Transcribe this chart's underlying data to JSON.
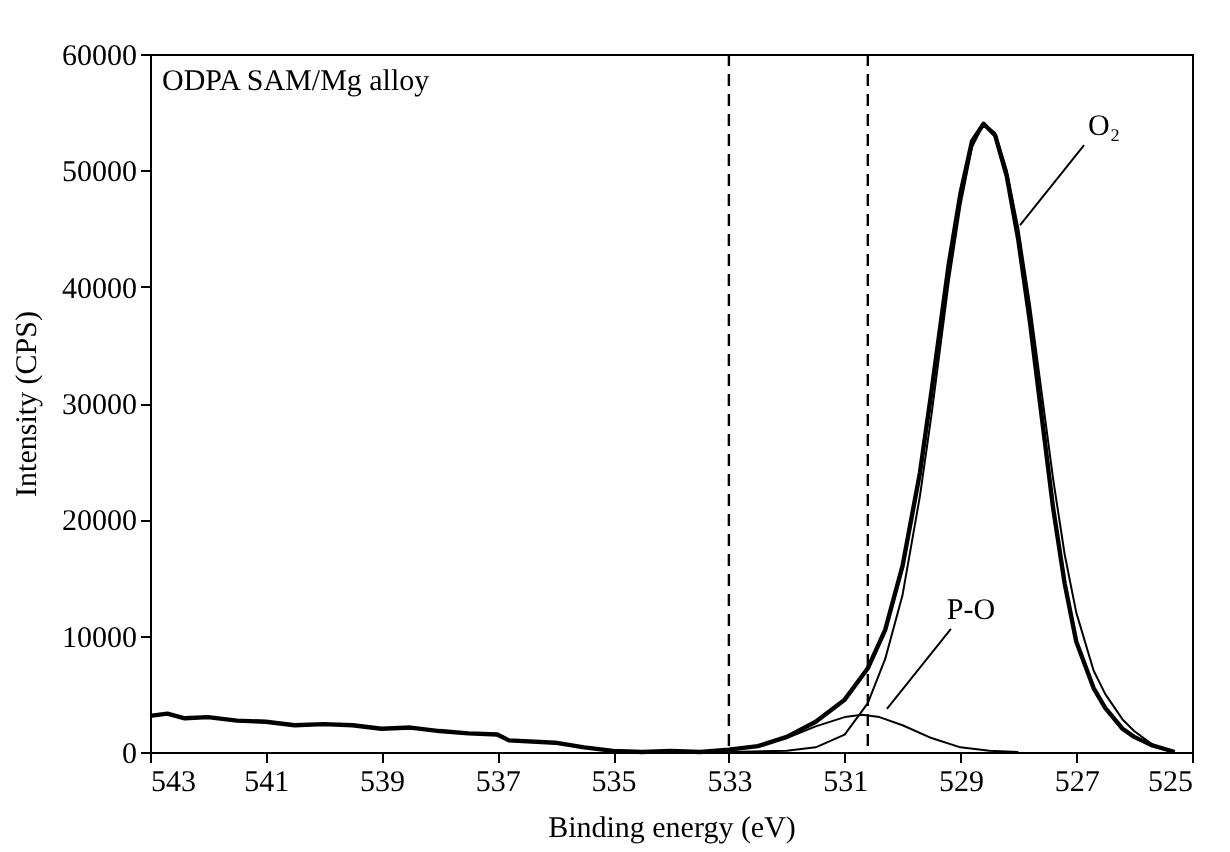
{
  "chart_data": {
    "type": "line",
    "xlabel": "Binding energy (eV)",
    "ylabel": "Intensity (CPS)",
    "xlim": [
      543,
      525
    ],
    "xticks": [
      543,
      541,
      539,
      537,
      535,
      533,
      531,
      529,
      527,
      525
    ],
    "ylim": [
      0,
      60000
    ],
    "yticks": [
      0,
      10000,
      20000,
      30000,
      40000,
      50000,
      60000
    ],
    "grid": false,
    "marker": "none",
    "line_style": "solid",
    "annotations": [
      "ODPA SAM/Mg alloy",
      {
        "text": "O₂",
        "x": 527.97,
        "y": 45300
      },
      {
        "text": "P-O",
        "x": 530.27,
        "y": 3700
      }
    ],
    "ref_lines": [
      {
        "axis": "x",
        "value": 533,
        "line_style": "dashed",
        "color": "#000000"
      },
      {
        "axis": "x",
        "value": 530.6,
        "line_style": "dashed",
        "color": "#000000"
      }
    ],
    "series": [
      {
        "color": "#000000",
        "x": [
          543,
          542.7,
          542.4,
          542,
          541.5,
          541,
          540.5,
          540,
          539.5,
          539,
          538.5,
          538,
          537.5,
          537,
          536.8,
          536,
          535.5,
          535,
          534.5,
          534,
          533.5,
          533,
          532.5,
          532,
          531.5,
          531,
          530.6,
          530.3,
          530,
          529.7,
          529.5,
          529.2,
          529,
          528.8,
          528.6,
          528.4,
          528.2,
          528,
          527.8,
          527.6,
          527.4,
          527.2,
          527,
          526.7,
          526.5,
          526.2,
          526,
          525.7,
          525.5,
          525.3
        ],
        "values": [
          3100,
          3300,
          2900,
          3000,
          2700,
          2600,
          2300,
          2400,
          2300,
          2000,
          2100,
          1800,
          1600,
          1500,
          1000,
          800,
          400,
          100,
          0,
          100,
          0,
          200,
          500,
          1300,
          2600,
          4500,
          7200,
          10500,
          16000,
          24000,
          31000,
          42000,
          48000,
          52500,
          54000,
          53000,
          49500,
          44000,
          37000,
          29000,
          21000,
          14500,
          9500,
          5500,
          3800,
          2000,
          1300,
          600,
          300,
          0
        ]
      },
      {
        "color": "#000000",
        "x": [
          533,
          532,
          531.5,
          531,
          530.6,
          530.3,
          530,
          529.7,
          529.5,
          529.2,
          529,
          528.8,
          528.6,
          528.4,
          528.2,
          528,
          527.8,
          527.6,
          527.4,
          527.2,
          527,
          526.7,
          526.5,
          526.2,
          526,
          525.7,
          525.5
        ],
        "values": [
          0,
          100,
          400,
          1500,
          4200,
          8000,
          13500,
          22000,
          29000,
          40500,
          47000,
          52000,
          54000,
          53200,
          50000,
          45000,
          38500,
          31000,
          23500,
          17000,
          12000,
          7000,
          5000,
          2800,
          1800,
          700,
          200
        ]
      },
      {
        "color": "#000000",
        "x": [
          533.5,
          533,
          532.5,
          532,
          531.5,
          531,
          530.7,
          530.4,
          530,
          529.5,
          529,
          528.5,
          528
        ],
        "values": [
          0,
          200,
          500,
          1200,
          2200,
          3000,
          3200,
          3000,
          2300,
          1200,
          400,
          100,
          0
        ]
      }
    ]
  }
}
